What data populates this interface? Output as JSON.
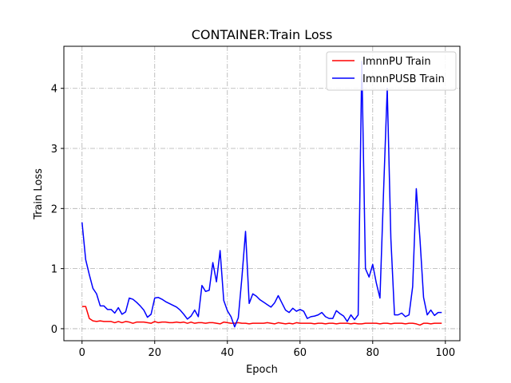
{
  "chart_data": {
    "type": "line",
    "title": "CONTAINER:Train Loss",
    "xlabel": "Epoch",
    "ylabel": "Train Loss",
    "xlim": [
      -5,
      104
    ],
    "ylim": [
      -0.2,
      4.7
    ],
    "xticks": [
      0,
      20,
      40,
      60,
      80,
      100
    ],
    "yticks": [
      0,
      1,
      2,
      3,
      4
    ],
    "grid": true,
    "legend_position": "top-right",
    "series": [
      {
        "name": "ImnnPU Train",
        "color": "#ff0000",
        "x": [
          0,
          1,
          2,
          3,
          4,
          5,
          6,
          7,
          8,
          9,
          10,
          11,
          12,
          13,
          14,
          15,
          16,
          17,
          18,
          19,
          20,
          21,
          22,
          23,
          24,
          25,
          26,
          27,
          28,
          29,
          30,
          31,
          32,
          33,
          34,
          35,
          36,
          37,
          38,
          39,
          40,
          41,
          42,
          43,
          44,
          45,
          46,
          47,
          48,
          49,
          50,
          51,
          52,
          53,
          54,
          55,
          56,
          57,
          58,
          59,
          60,
          61,
          62,
          63,
          64,
          65,
          66,
          67,
          68,
          69,
          70,
          71,
          72,
          73,
          74,
          75,
          76,
          77,
          78,
          79,
          80,
          81,
          82,
          83,
          84,
          85,
          86,
          87,
          88,
          89,
          90,
          91,
          92,
          93,
          94,
          95,
          96,
          97,
          98,
          99
        ],
        "y": [
          0.37,
          0.37,
          0.17,
          0.13,
          0.12,
          0.13,
          0.12,
          0.12,
          0.12,
          0.1,
          0.12,
          0.1,
          0.12,
          0.11,
          0.09,
          0.11,
          0.11,
          0.11,
          0.1,
          0.09,
          0.12,
          0.1,
          0.11,
          0.11,
          0.1,
          0.1,
          0.11,
          0.1,
          0.11,
          0.09,
          0.11,
          0.09,
          0.1,
          0.1,
          0.09,
          0.1,
          0.1,
          0.09,
          0.08,
          0.11,
          0.1,
          0.09,
          0.09,
          0.1,
          0.09,
          0.09,
          0.08,
          0.09,
          0.09,
          0.09,
          0.09,
          0.1,
          0.09,
          0.08,
          0.1,
          0.09,
          0.08,
          0.09,
          0.08,
          0.1,
          0.09,
          0.09,
          0.09,
          0.09,
          0.08,
          0.09,
          0.09,
          0.08,
          0.09,
          0.09,
          0.08,
          0.09,
          0.09,
          0.09,
          0.08,
          0.09,
          0.08,
          0.08,
          0.09,
          0.09,
          0.09,
          0.09,
          0.08,
          0.09,
          0.09,
          0.08,
          0.09,
          0.09,
          0.09,
          0.08,
          0.09,
          0.09,
          0.08,
          0.06,
          0.09,
          0.09,
          0.08,
          0.09,
          0.09,
          0.09
        ]
      },
      {
        "name": "ImnnPUSB Train",
        "color": "#0000ff",
        "x": [
          0,
          1,
          2,
          3,
          4,
          5,
          6,
          7,
          8,
          9,
          10,
          11,
          12,
          13,
          14,
          15,
          16,
          17,
          18,
          19,
          20,
          21,
          22,
          23,
          24,
          25,
          26,
          27,
          28,
          29,
          30,
          31,
          32,
          33,
          34,
          35,
          36,
          37,
          38,
          39,
          40,
          41,
          42,
          43,
          44,
          45,
          46,
          47,
          48,
          49,
          50,
          51,
          52,
          53,
          54,
          55,
          56,
          57,
          58,
          59,
          60,
          61,
          62,
          63,
          64,
          65,
          66,
          67,
          68,
          69,
          70,
          71,
          72,
          73,
          74,
          75,
          76,
          77,
          78,
          79,
          80,
          81,
          82,
          83,
          84,
          85,
          86,
          87,
          88,
          89,
          90,
          91,
          92,
          93,
          94,
          95,
          96,
          97,
          98,
          99
        ],
        "y": [
          1.77,
          1.15,
          0.9,
          0.67,
          0.58,
          0.38,
          0.38,
          0.32,
          0.32,
          0.26,
          0.35,
          0.24,
          0.28,
          0.51,
          0.49,
          0.44,
          0.38,
          0.31,
          0.19,
          0.24,
          0.51,
          0.52,
          0.49,
          0.45,
          0.42,
          0.39,
          0.36,
          0.31,
          0.24,
          0.16,
          0.21,
          0.31,
          0.2,
          0.72,
          0.62,
          0.64,
          1.1,
          0.78,
          1.3,
          0.47,
          0.3,
          0.2,
          0.03,
          0.18,
          0.85,
          1.62,
          0.42,
          0.58,
          0.54,
          0.48,
          0.44,
          0.4,
          0.36,
          0.43,
          0.55,
          0.43,
          0.31,
          0.27,
          0.34,
          0.29,
          0.32,
          0.29,
          0.17,
          0.2,
          0.21,
          0.23,
          0.27,
          0.2,
          0.17,
          0.17,
          0.3,
          0.25,
          0.21,
          0.12,
          0.23,
          0.15,
          0.23,
          4.45,
          1.0,
          0.86,
          1.07,
          0.76,
          0.51,
          2.3,
          4.0,
          1.5,
          0.23,
          0.23,
          0.26,
          0.2,
          0.23,
          0.7,
          2.33,
          1.5,
          0.52,
          0.23,
          0.31,
          0.22,
          0.27,
          0.27
        ]
      }
    ]
  }
}
